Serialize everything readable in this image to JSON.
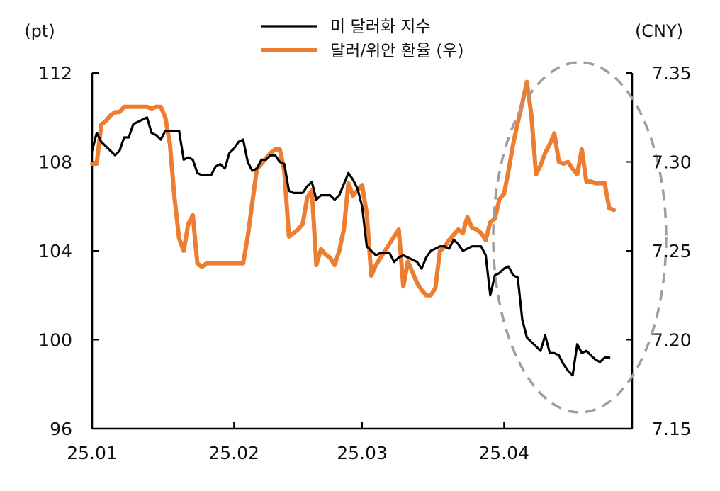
{
  "chart_data": {
    "type": "line",
    "title": "",
    "left_unit": "(pt)",
    "right_unit": "(CNY)",
    "left_axis": {
      "range": [
        96,
        112
      ],
      "ticks": [
        "112",
        "108",
        "104",
        "100",
        "96"
      ]
    },
    "right_axis": {
      "range": [
        7.15,
        7.35
      ],
      "ticks": [
        "7.35",
        "7.30",
        "7.25",
        "7.20",
        "7.15"
      ]
    },
    "x_axis": {
      "range": [
        0,
        118
      ],
      "ticks": [
        {
          "x": 0,
          "label": "25.01"
        },
        {
          "x": 31,
          "label": "25.02"
        },
        {
          "x": 59,
          "label": "25.03"
        },
        {
          "x": 90,
          "label": "25.04"
        }
      ]
    },
    "legend": {
      "placement": "top-center"
    },
    "annotation": "dashed ellipse highlighting April",
    "series": [
      {
        "name": "미 달러화 지수",
        "axis": "left",
        "color": "#000000",
        "points": [
          [
            0,
            108.5
          ],
          [
            1,
            109.3
          ],
          [
            2,
            108.9
          ],
          [
            3,
            108.7
          ],
          [
            4,
            108.5
          ],
          [
            5,
            108.3
          ],
          [
            6,
            108.5
          ],
          [
            7,
            109.1
          ],
          [
            8,
            109.1
          ],
          [
            9,
            109.7
          ],
          [
            10,
            109.8
          ],
          [
            11,
            109.9
          ],
          [
            12,
            110.0
          ],
          [
            13,
            109.3
          ],
          [
            14,
            109.2
          ],
          [
            15,
            109.0
          ],
          [
            16,
            109.4
          ],
          [
            17,
            109.4
          ],
          [
            18,
            109.4
          ],
          [
            19,
            109.4
          ],
          [
            20,
            108.1
          ],
          [
            21,
            108.2
          ],
          [
            22,
            108.1
          ],
          [
            23,
            107.5
          ],
          [
            24,
            107.4
          ],
          [
            25,
            107.4
          ],
          [
            26,
            107.4
          ],
          [
            27,
            107.8
          ],
          [
            28,
            107.9
          ],
          [
            29,
            107.7
          ],
          [
            30,
            108.4
          ],
          [
            31,
            108.6
          ],
          [
            32,
            108.9
          ],
          [
            33,
            109.0
          ],
          [
            34,
            108.0
          ],
          [
            35,
            107.6
          ],
          [
            36,
            107.7
          ],
          [
            37,
            108.1
          ],
          [
            38,
            108.1
          ],
          [
            39,
            108.3
          ],
          [
            40,
            108.3
          ],
          [
            41,
            108.0
          ],
          [
            42,
            107.9
          ],
          [
            43,
            106.7
          ],
          [
            44,
            106.6
          ],
          [
            45,
            106.6
          ],
          [
            46,
            106.6
          ],
          [
            47,
            106.9
          ],
          [
            48,
            107.1
          ],
          [
            49,
            106.3
          ],
          [
            50,
            106.5
          ],
          [
            51,
            106.5
          ],
          [
            52,
            106.5
          ],
          [
            53,
            106.3
          ],
          [
            54,
            106.5
          ],
          [
            55,
            107.0
          ],
          [
            56,
            107.5
          ],
          [
            57,
            107.2
          ],
          [
            58,
            106.8
          ],
          [
            59,
            106.0
          ],
          [
            60,
            104.2
          ],
          [
            61,
            104.0
          ],
          [
            62,
            103.8
          ],
          [
            63,
            103.9
          ],
          [
            64,
            103.9
          ],
          [
            65,
            103.9
          ],
          [
            66,
            103.5
          ],
          [
            67,
            103.7
          ],
          [
            68,
            103.8
          ],
          [
            69,
            103.7
          ],
          [
            70,
            103.6
          ],
          [
            71,
            103.5
          ],
          [
            72,
            103.2
          ],
          [
            73,
            103.7
          ],
          [
            74,
            104.0
          ],
          [
            75,
            104.1
          ],
          [
            76,
            104.2
          ],
          [
            77,
            104.2
          ],
          [
            78,
            104.1
          ],
          [
            79,
            104.5
          ],
          [
            80,
            104.3
          ],
          [
            81,
            104.0
          ],
          [
            82,
            104.1
          ],
          [
            83,
            104.2
          ],
          [
            84,
            104.2
          ],
          [
            85,
            104.2
          ],
          [
            86,
            103.8
          ],
          [
            87,
            102.0
          ],
          [
            88,
            102.9
          ],
          [
            89,
            103.0
          ],
          [
            90,
            103.2
          ],
          [
            91,
            103.3
          ],
          [
            92,
            102.9
          ],
          [
            93,
            102.8
          ],
          [
            94,
            100.9
          ],
          [
            95,
            100.1
          ],
          [
            96,
            99.9
          ],
          [
            97,
            99.7
          ],
          [
            98,
            99.5
          ],
          [
            99,
            100.2
          ],
          [
            100,
            99.4
          ],
          [
            101,
            99.4
          ],
          [
            102,
            99.3
          ],
          [
            103,
            98.9
          ],
          [
            104,
            98.6
          ],
          [
            105,
            98.4
          ],
          [
            106,
            99.8
          ],
          [
            107,
            99.4
          ],
          [
            108,
            99.5
          ],
          [
            109,
            99.3
          ],
          [
            110,
            99.1
          ],
          [
            111,
            99.0
          ],
          [
            112,
            99.2
          ],
          [
            113,
            99.2
          ]
        ]
      },
      {
        "name": "달러/위안 환율 (우)",
        "axis": "right",
        "color": "#ED7D31",
        "points": [
          [
            0,
            7.299
          ],
          [
            1,
            7.299
          ],
          [
            2,
            7.321
          ],
          [
            3,
            7.323
          ],
          [
            4,
            7.326
          ],
          [
            5,
            7.328
          ],
          [
            6,
            7.328
          ],
          [
            7,
            7.331
          ],
          [
            8,
            7.331
          ],
          [
            9,
            7.331
          ],
          [
            10,
            7.331
          ],
          [
            11,
            7.331
          ],
          [
            12,
            7.331
          ],
          [
            13,
            7.33
          ],
          [
            14,
            7.331
          ],
          [
            15,
            7.331
          ],
          [
            16,
            7.325
          ],
          [
            17,
            7.31
          ],
          [
            18,
            7.28
          ],
          [
            19,
            7.257
          ],
          [
            20,
            7.25
          ],
          [
            21,
            7.265
          ],
          [
            22,
            7.27
          ],
          [
            23,
            7.243
          ],
          [
            24,
            7.241
          ],
          [
            25,
            7.243
          ],
          [
            26,
            7.243
          ],
          [
            27,
            7.243
          ],
          [
            28,
            7.243
          ],
          [
            29,
            7.243
          ],
          [
            30,
            7.243
          ],
          [
            31,
            7.243
          ],
          [
            32,
            7.243
          ],
          [
            33,
            7.243
          ],
          [
            34,
            7.258
          ],
          [
            35,
            7.277
          ],
          [
            36,
            7.296
          ],
          [
            37,
            7.299
          ],
          [
            38,
            7.302
          ],
          [
            39,
            7.305
          ],
          [
            40,
            7.307
          ],
          [
            41,
            7.307
          ],
          [
            42,
            7.295
          ],
          [
            43,
            7.258
          ],
          [
            44,
            7.26
          ],
          [
            45,
            7.262
          ],
          [
            46,
            7.265
          ],
          [
            47,
            7.28
          ],
          [
            48,
            7.284
          ],
          [
            49,
            7.242
          ],
          [
            50,
            7.251
          ],
          [
            51,
            7.248
          ],
          [
            52,
            7.246
          ],
          [
            53,
            7.242
          ],
          [
            54,
            7.25
          ],
          [
            55,
            7.262
          ],
          [
            56,
            7.288
          ],
          [
            57,
            7.281
          ],
          [
            58,
            7.284
          ],
          [
            59,
            7.287
          ],
          [
            60,
            7.271
          ],
          [
            61,
            7.236
          ],
          [
            62,
            7.242
          ],
          [
            63,
            7.246
          ],
          [
            64,
            7.25
          ],
          [
            65,
            7.254
          ],
          [
            66,
            7.258
          ],
          [
            67,
            7.262
          ],
          [
            68,
            7.23
          ],
          [
            69,
            7.244
          ],
          [
            70,
            7.238
          ],
          [
            71,
            7.232
          ],
          [
            72,
            7.228
          ],
          [
            73,
            7.225
          ],
          [
            74,
            7.225
          ],
          [
            75,
            7.229
          ],
          [
            76,
            7.25
          ],
          [
            77,
            7.252
          ],
          [
            78,
            7.256
          ],
          [
            79,
            7.259
          ],
          [
            80,
            7.262
          ],
          [
            81,
            7.26
          ],
          [
            82,
            7.269
          ],
          [
            83,
            7.263
          ],
          [
            84,
            7.262
          ],
          [
            85,
            7.26
          ],
          [
            86,
            7.256
          ],
          [
            87,
            7.266
          ],
          [
            88,
            7.268
          ],
          [
            89,
            7.279
          ],
          [
            90,
            7.282
          ],
          [
            91,
            7.295
          ],
          [
            92,
            7.31
          ],
          [
            93,
            7.322
          ],
          [
            94,
            7.333
          ],
          [
            95,
            7.345
          ],
          [
            96,
            7.326
          ],
          [
            97,
            7.293
          ],
          [
            98,
            7.298
          ],
          [
            99,
            7.305
          ],
          [
            100,
            7.31
          ],
          [
            101,
            7.316
          ],
          [
            102,
            7.3
          ],
          [
            103,
            7.299
          ],
          [
            104,
            7.3
          ],
          [
            105,
            7.296
          ],
          [
            106,
            7.293
          ],
          [
            107,
            7.307
          ],
          [
            108,
            7.289
          ],
          [
            109,
            7.289
          ],
          [
            110,
            7.288
          ],
          [
            111,
            7.288
          ],
          [
            112,
            7.288
          ],
          [
            113,
            7.274
          ],
          [
            114,
            7.273
          ]
        ]
      }
    ]
  }
}
